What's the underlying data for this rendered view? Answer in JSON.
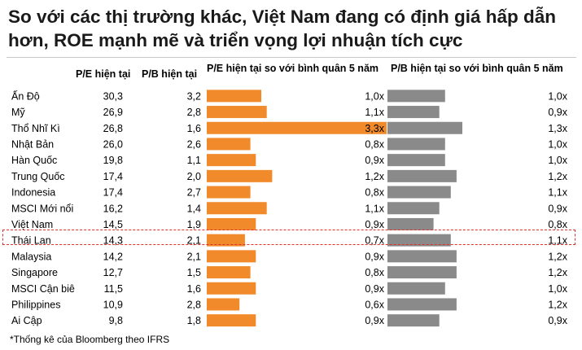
{
  "title": "So với các thị trường khác, Việt Nam đang có định giá hấp dẫn hơn, ROE mạnh mẽ và triển vọng lợi nhuận tích cực",
  "headers": {
    "pe": "P/E hiện tại",
    "pb": "P/B hiện tại",
    "pe_vs_avg": "P/E hiện tại so với bình quân 5 năm",
    "pb_vs_avg": "P/B hiện tại so với bình quân 5 năm"
  },
  "footnote": "*Thống kê của Bloomberg theo IFRS",
  "colors": {
    "pe_bar": "#f08a2b",
    "pb_bar": "#8a8a8a",
    "highlight": "#e03030"
  },
  "chart_data": {
    "type": "table",
    "markets": [
      "Ấn Độ",
      "Mỹ",
      "Thổ Nhĩ Kì",
      "Nhật Bản",
      "Hàn Quốc",
      "Trung Quốc",
      "Indonesia",
      "MSCI Mới nổi",
      "Việt Nam",
      "Thái Lan",
      "Malaysia",
      "Singapore",
      "MSCI Cận biê",
      "Philippines",
      "Ai Cập"
    ],
    "pe": [
      "30,3",
      "26,9",
      "26,8",
      "26,0",
      "19,8",
      "17,4",
      "17,4",
      "16,2",
      "14,5",
      "14,3",
      "14,2",
      "12,7",
      "11,5",
      "10,9",
      "9,8"
    ],
    "pb": [
      "3,2",
      "2,8",
      "1,6",
      "2,6",
      "1,1",
      "2,0",
      "2,7",
      "1,4",
      "1,9",
      "2,1",
      "2,1",
      "1,5",
      "1,6",
      "2,8",
      "1,8"
    ],
    "pe_vs_avg": {
      "labels": [
        "1,0x",
        "1,1x",
        "3,3x",
        "0,8x",
        "0,9x",
        "1,2x",
        "0,8x",
        "1,1x",
        "0,9x",
        "0,7x",
        "0,9x",
        "0,8x",
        "0,9x",
        "0,6x",
        "0,9x"
      ],
      "values": [
        1.0,
        1.1,
        3.3,
        0.8,
        0.9,
        1.2,
        0.8,
        1.1,
        0.9,
        0.7,
        0.9,
        0.8,
        0.9,
        0.6,
        0.9
      ],
      "xlim": [
        0,
        3.3
      ]
    },
    "pb_vs_avg": {
      "labels": [
        "1,0x",
        "0,9x",
        "1,3x",
        "1,0x",
        "1,0x",
        "1,2x",
        "1,1x",
        "0,9x",
        "0,8x",
        "1,1x",
        "1,2x",
        "1,2x",
        "1,0x",
        "1,2x",
        "0,9x"
      ],
      "values": [
        1.0,
        0.9,
        1.3,
        1.0,
        1.0,
        1.2,
        1.1,
        0.9,
        0.8,
        1.1,
        1.2,
        1.2,
        1.0,
        1.2,
        0.9
      ],
      "xlim": [
        0,
        1.3
      ]
    },
    "highlighted": [
      "Việt Nam",
      "Thái Lan"
    ]
  }
}
